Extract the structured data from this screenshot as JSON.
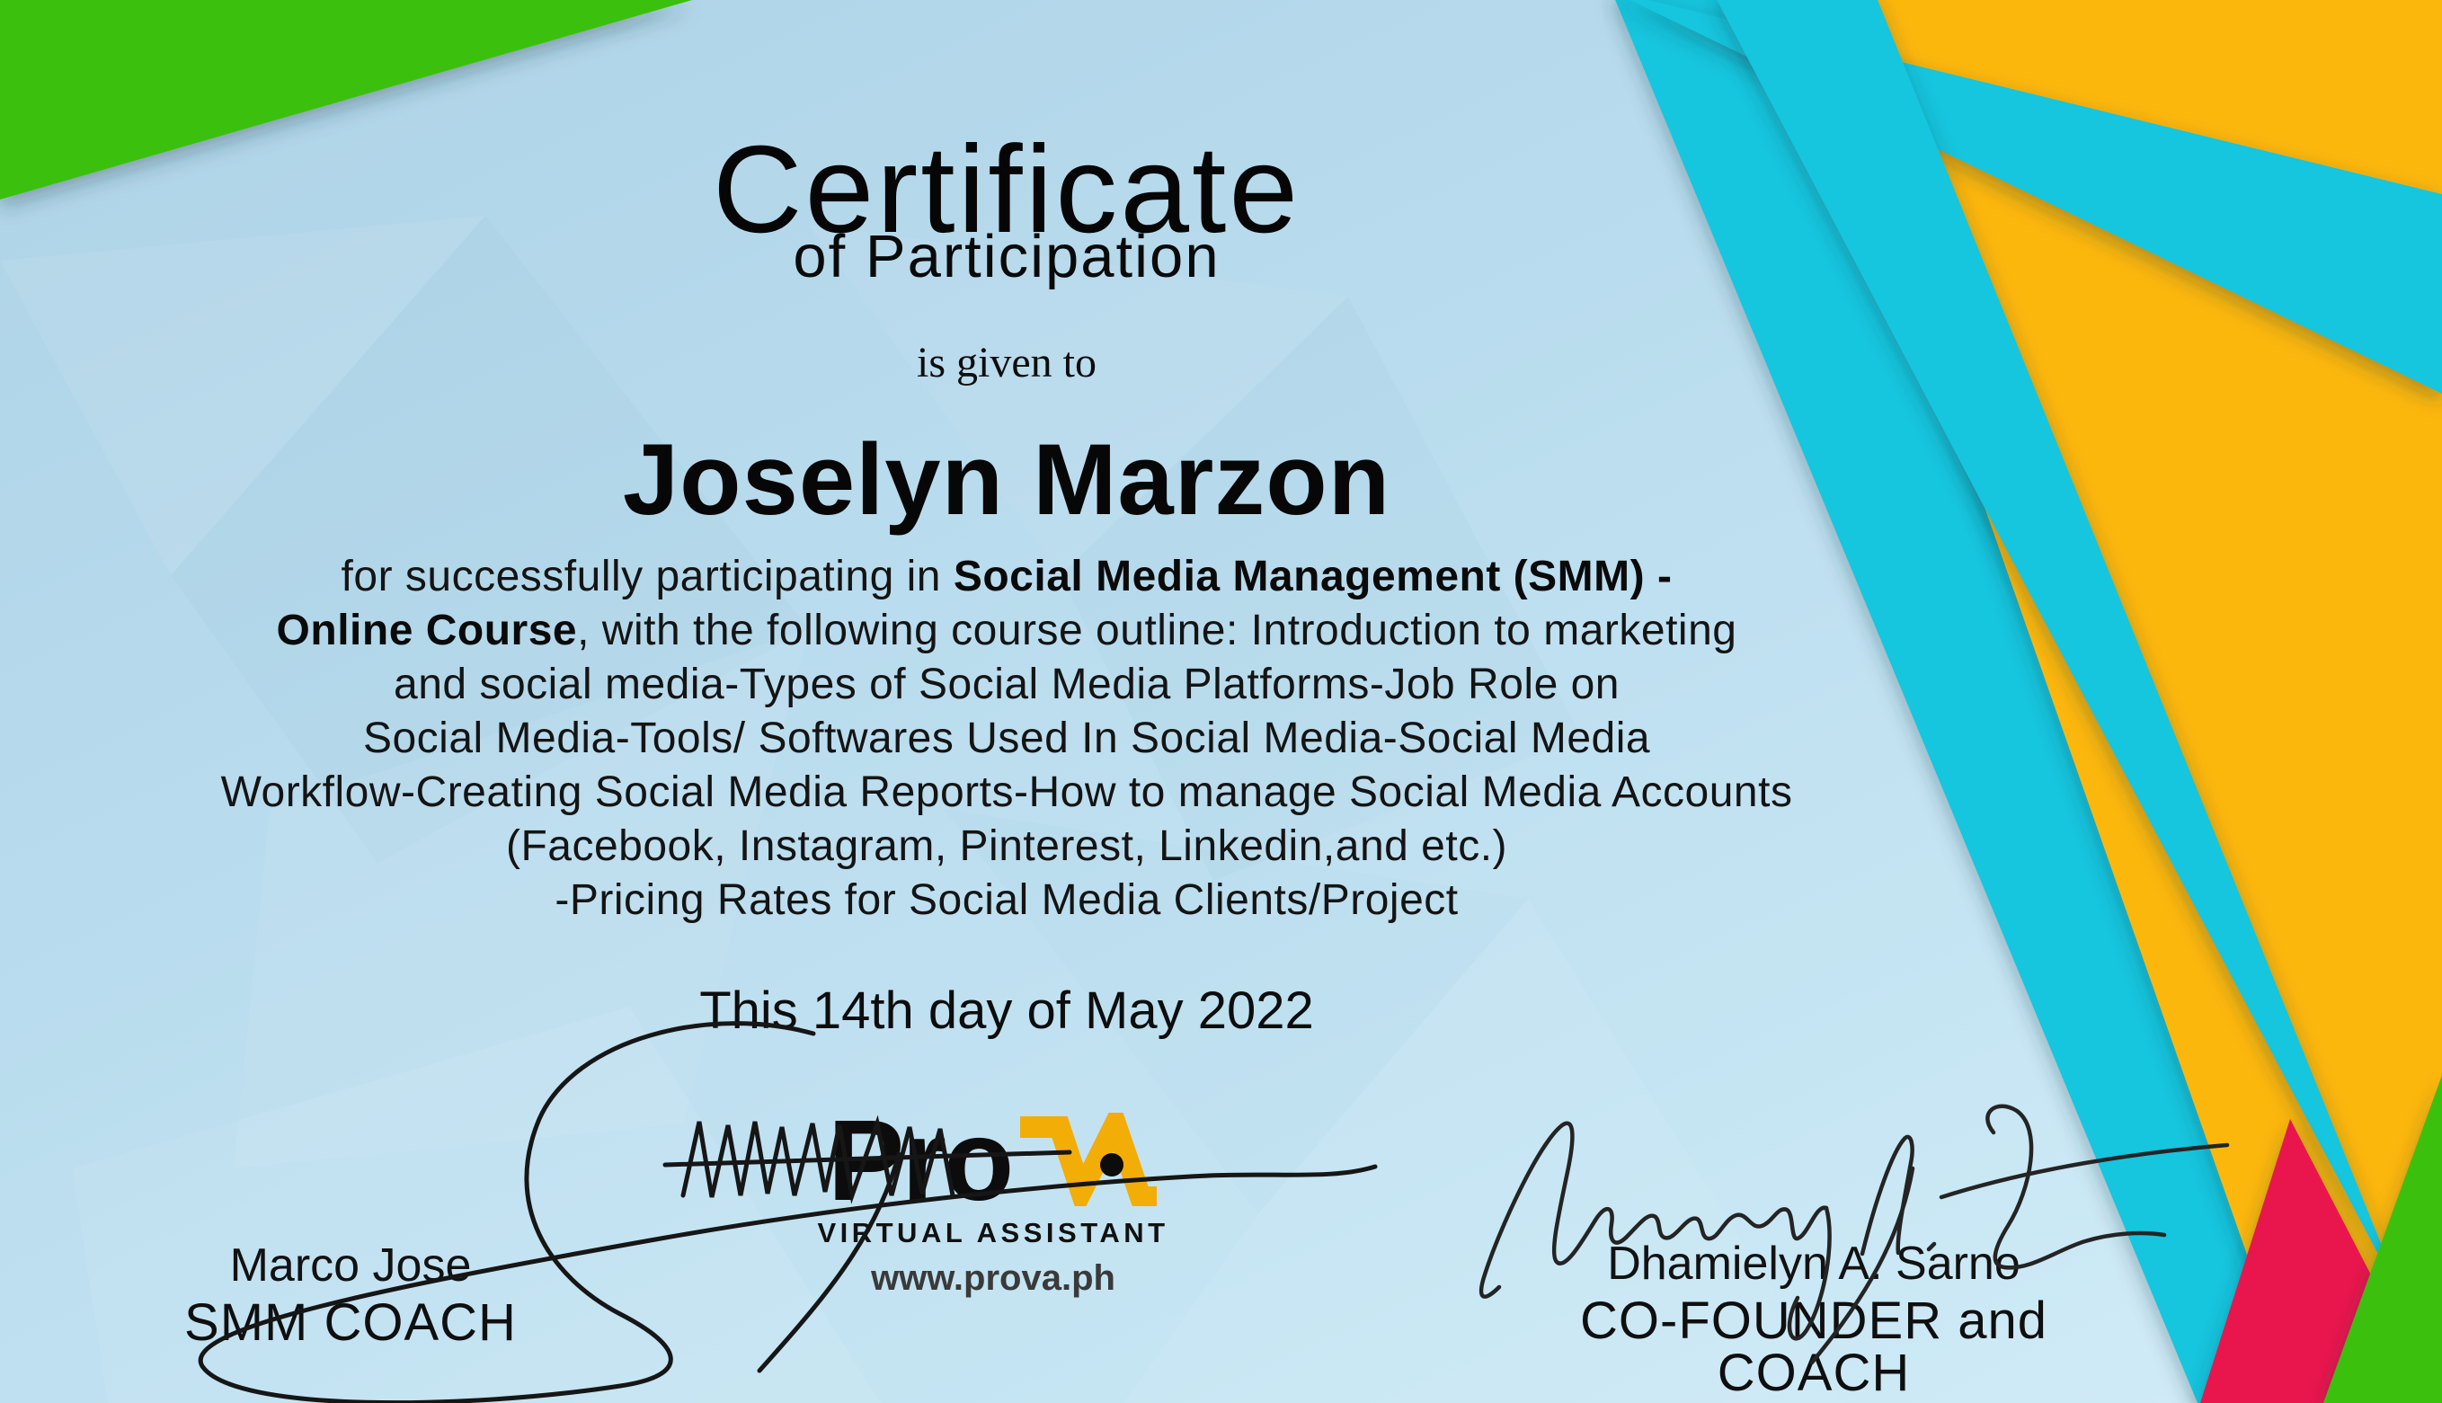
{
  "certificate": {
    "title": "Certificate",
    "subtitle": "of Participation",
    "given_line": "is given to",
    "recipient": "Joselyn Marzon",
    "body_lines": [
      [
        {
          "t": "for successfully participating in ",
          "b": 0
        },
        {
          "t": "Social Media Management (SMM) -",
          "b": 1
        }
      ],
      [
        {
          "t": "Online Course",
          "b": 1
        },
        {
          "t": ", with the following course outline: Introduction to marketing",
          "b": 0
        }
      ],
      [
        {
          "t": "and social media-Types of Social Media Platforms-Job Role on",
          "b": 0
        }
      ],
      [
        {
          "t": "Social Media-Tools/ Softwares Used In Social Media-Social Media",
          "b": 0
        }
      ],
      [
        {
          "t": "Workflow-Creating Social Media Reports-How to manage Social Media Accounts",
          "b": 0
        }
      ],
      [
        {
          "t": "(Facebook, Instagram, Pinterest, Linkedin,and etc.)",
          "b": 0
        }
      ],
      [
        {
          "t": "-Pricing Rates for Social Media Clients/Project",
          "b": 0
        }
      ]
    ],
    "date_line": "This 14th day of May 2022"
  },
  "signers": {
    "left": {
      "name": "Marco Jose",
      "role": "SMM COACH"
    },
    "right": {
      "name": "Dhamielyn A. Sarno",
      "role": "CO-FOUNDER and COACH"
    }
  },
  "logo": {
    "wordmark": "Pro",
    "monogram": "VA",
    "tagline": "VIRTUAL ASSISTANT",
    "website": "www.prova.ph"
  },
  "colors": {
    "background": "#bcdcec",
    "cyan": "#14c5de",
    "yellow": "#fcb70c",
    "green": "#3ac10e",
    "red": "#e9194e",
    "logo_yellow": "#f3ad07",
    "text": "#101010",
    "website_gray": "#3a3a3a"
  }
}
